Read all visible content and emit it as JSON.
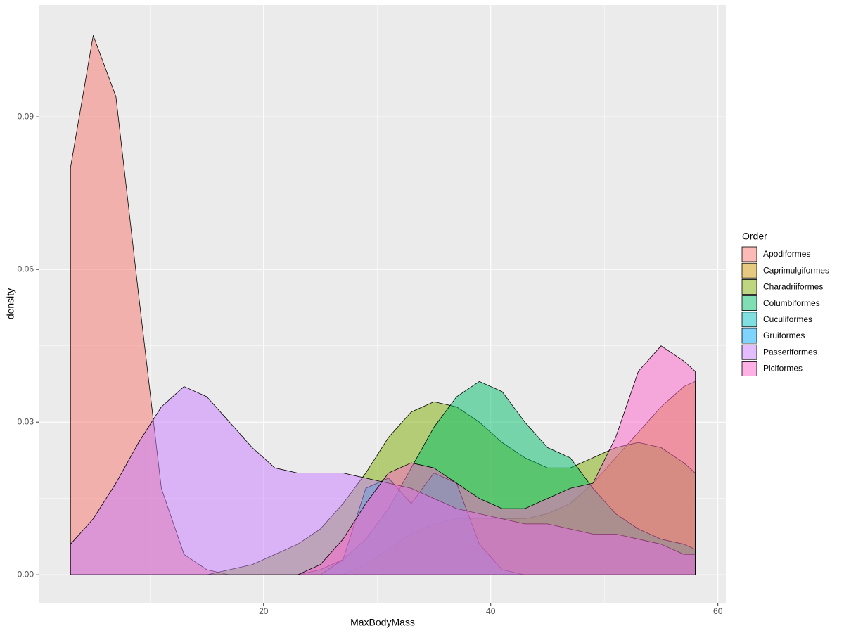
{
  "chart_data": {
    "type": "density",
    "x_label": "MaxBodyMass",
    "y_label": "density",
    "legend_title": "Order",
    "x": [
      3,
      5,
      7,
      9,
      11,
      13,
      15,
      17,
      19,
      21,
      23,
      25,
      27,
      29,
      31,
      33,
      35,
      37,
      39,
      41,
      43,
      45,
      47,
      49,
      51,
      53,
      55,
      57,
      58
    ],
    "series": [
      {
        "name": "Apodiformes",
        "color": "#F8766D",
        "values": [
          0.08,
          0.106,
          0.094,
          0.055,
          0.017,
          0.004,
          0.001,
          0,
          0,
          0,
          0,
          0,
          0,
          0,
          0,
          0,
          0,
          0,
          0,
          0,
          0,
          0,
          0,
          0,
          0,
          0,
          0,
          0,
          0
        ]
      },
      {
        "name": "Caprimulgiformes",
        "color": "#CD9600",
        "values": [
          0,
          0,
          0,
          0,
          0,
          0,
          0,
          0,
          0,
          0,
          0,
          0,
          0,
          0.002,
          0.005,
          0.008,
          0.01,
          0.011,
          0.011,
          0.011,
          0.011,
          0.012,
          0.014,
          0.018,
          0.023,
          0.028,
          0.033,
          0.037,
          0.038
        ]
      },
      {
        "name": "Charadriiformes",
        "color": "#7CAE00",
        "values": [
          0,
          0,
          0,
          0,
          0,
          0,
          0,
          0.001,
          0.002,
          0.004,
          0.006,
          0.009,
          0.014,
          0.02,
          0.027,
          0.032,
          0.034,
          0.033,
          0.03,
          0.026,
          0.023,
          0.021,
          0.021,
          0.023,
          0.025,
          0.026,
          0.025,
          0.022,
          0.02
        ]
      },
      {
        "name": "Columbiformes",
        "color": "#00BE67",
        "values": [
          0,
          0,
          0,
          0,
          0,
          0,
          0,
          0,
          0,
          0,
          0,
          0.001,
          0.003,
          0.007,
          0.013,
          0.021,
          0.029,
          0.035,
          0.038,
          0.036,
          0.03,
          0.025,
          0.023,
          0.017,
          0.012,
          0.009,
          0.007,
          0.006,
          0.005
        ]
      },
      {
        "name": "Cuculiformes",
        "color": "#00BFC4",
        "values": [
          0,
          0,
          0,
          0,
          0,
          0,
          0,
          0,
          0,
          0,
          0,
          0,
          0.003,
          0.017,
          0.019,
          0.014,
          0.02,
          0.018,
          0.006,
          0.001,
          0,
          0,
          0,
          0,
          0,
          0,
          0,
          0,
          0
        ]
      },
      {
        "name": "Gruiformes",
        "color": "#00A9FF",
        "values": [
          null,
          null,
          null,
          null,
          null,
          null,
          null,
          null,
          null,
          null,
          null,
          null,
          null,
          null,
          null,
          null,
          null,
          null,
          null,
          null,
          null,
          null,
          null,
          null,
          null,
          null,
          null,
          null,
          null
        ]
      },
      {
        "name": "Passeriformes",
        "color": "#C77CFF",
        "values": [
          0.006,
          0.011,
          0.018,
          0.026,
          0.033,
          0.037,
          0.035,
          0.03,
          0.025,
          0.021,
          0.02,
          0.02,
          0.02,
          0.019,
          0.018,
          0.017,
          0.015,
          0.013,
          0.012,
          0.011,
          0.01,
          0.01,
          0.009,
          0.008,
          0.008,
          0.007,
          0.006,
          0.004,
          0.004
        ]
      },
      {
        "name": "Piciformes",
        "color": "#FF61CC",
        "values": [
          0,
          0,
          0,
          0,
          0,
          0,
          0,
          0,
          0,
          0,
          0,
          0.002,
          0.007,
          0.014,
          0.02,
          0.022,
          0.021,
          0.018,
          0.015,
          0.013,
          0.013,
          0.015,
          0.017,
          0.018,
          0.027,
          0.04,
          0.045,
          0.042,
          0.04
        ]
      }
    ],
    "xlim": [
      0.2,
      60.7
    ],
    "xticks": [
      20,
      40,
      60
    ],
    "ylim": [
      -0.0055,
      0.112
    ],
    "yticks": [
      {
        "value": 0,
        "label": "0.00"
      },
      {
        "value": 0.03,
        "label": "0.03"
      },
      {
        "value": 0.06,
        "label": "0.06"
      },
      {
        "value": 0.09,
        "label": "0.09"
      }
    ],
    "grid": true,
    "fill_opacity": 0.5,
    "legend_position": "right"
  }
}
